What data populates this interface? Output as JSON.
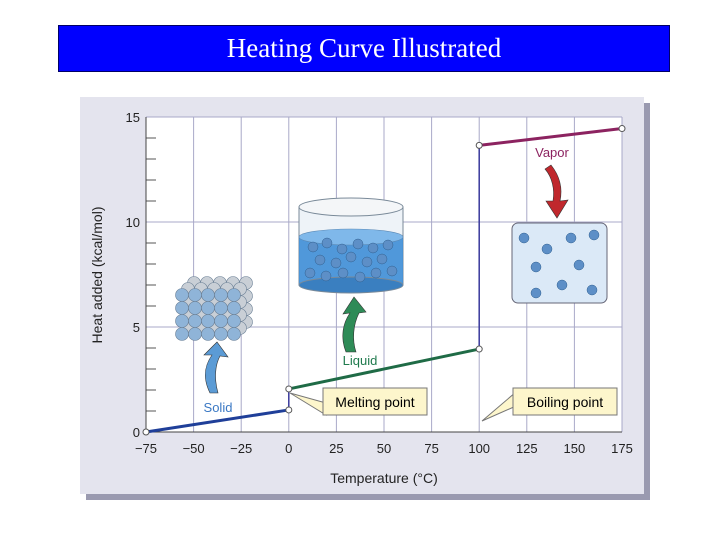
{
  "slide": {
    "title": "Heating Curve Illustrated"
  },
  "colors": {
    "title_bg": "#0000ff",
    "title_text": "#ffffff",
    "panel_bg": "#e4e4ee",
    "plot_bg": "#ffffff",
    "grid": "#a9a9c8",
    "solid_line": "#1f3f99",
    "liquid_line": "#1f6b46",
    "gas_line": "#8c2360",
    "transition_line": "#3a3a9c",
    "solid_label": "#3a78c4",
    "liquid_label": "#1f7a4d",
    "vapor_label": "#8c2360",
    "arrow_blue": "#5b9bd5",
    "arrow_green": "#2e8b57",
    "arrow_red": "#c0282d",
    "callout_bg": "#fdf6cc",
    "molecule": "#5d8fc7"
  },
  "chart_data": {
    "type": "line",
    "xlabel": "Temperature (°C)",
    "ylabel": "Heat added (kcal/mol)",
    "xlim": [
      -75,
      175
    ],
    "ylim": [
      0,
      15
    ],
    "xticks": [
      "−75",
      "−50",
      "−25",
      "0",
      "25",
      "50",
      "75",
      "100",
      "125",
      "150",
      "175"
    ],
    "xtick_values": [
      -75,
      -50,
      -25,
      0,
      25,
      50,
      75,
      100,
      125,
      150,
      175
    ],
    "yticks": [
      "0",
      "5",
      "10",
      "15"
    ],
    "ytick_values": [
      0,
      5,
      10,
      15
    ],
    "grid": true,
    "series": [
      {
        "x": [
          -75,
          0
        ],
        "y": [
          0,
          1.05
        ],
        "color": "#1f3f99"
      },
      {
        "x": [
          0,
          0
        ],
        "y": [
          1.05,
          2.05
        ],
        "color": "#3a3a9c"
      },
      {
        "x": [
          0,
          100
        ],
        "y": [
          2.05,
          3.95
        ],
        "color": "#1f6b46"
      },
      {
        "x": [
          100,
          100
        ],
        "y": [
          3.95,
          13.65
        ],
        "color": "#3a3a9c"
      },
      {
        "x": [
          100,
          175
        ],
        "y": [
          13.65,
          14.45
        ],
        "color": "#8c2360"
      }
    ],
    "markers": [
      {
        "x": -75,
        "y": 0
      },
      {
        "x": 0,
        "y": 1.05
      },
      {
        "x": 0,
        "y": 2.05
      },
      {
        "x": 100,
        "y": 3.95
      },
      {
        "x": 100,
        "y": 13.65
      },
      {
        "x": 175,
        "y": 14.45
      }
    ],
    "annotations": {
      "solid": "Solid",
      "liquid": "Liquid",
      "vapor": "Vapor",
      "melting_point": "Melting point",
      "boiling_point": "Boiling point"
    }
  }
}
